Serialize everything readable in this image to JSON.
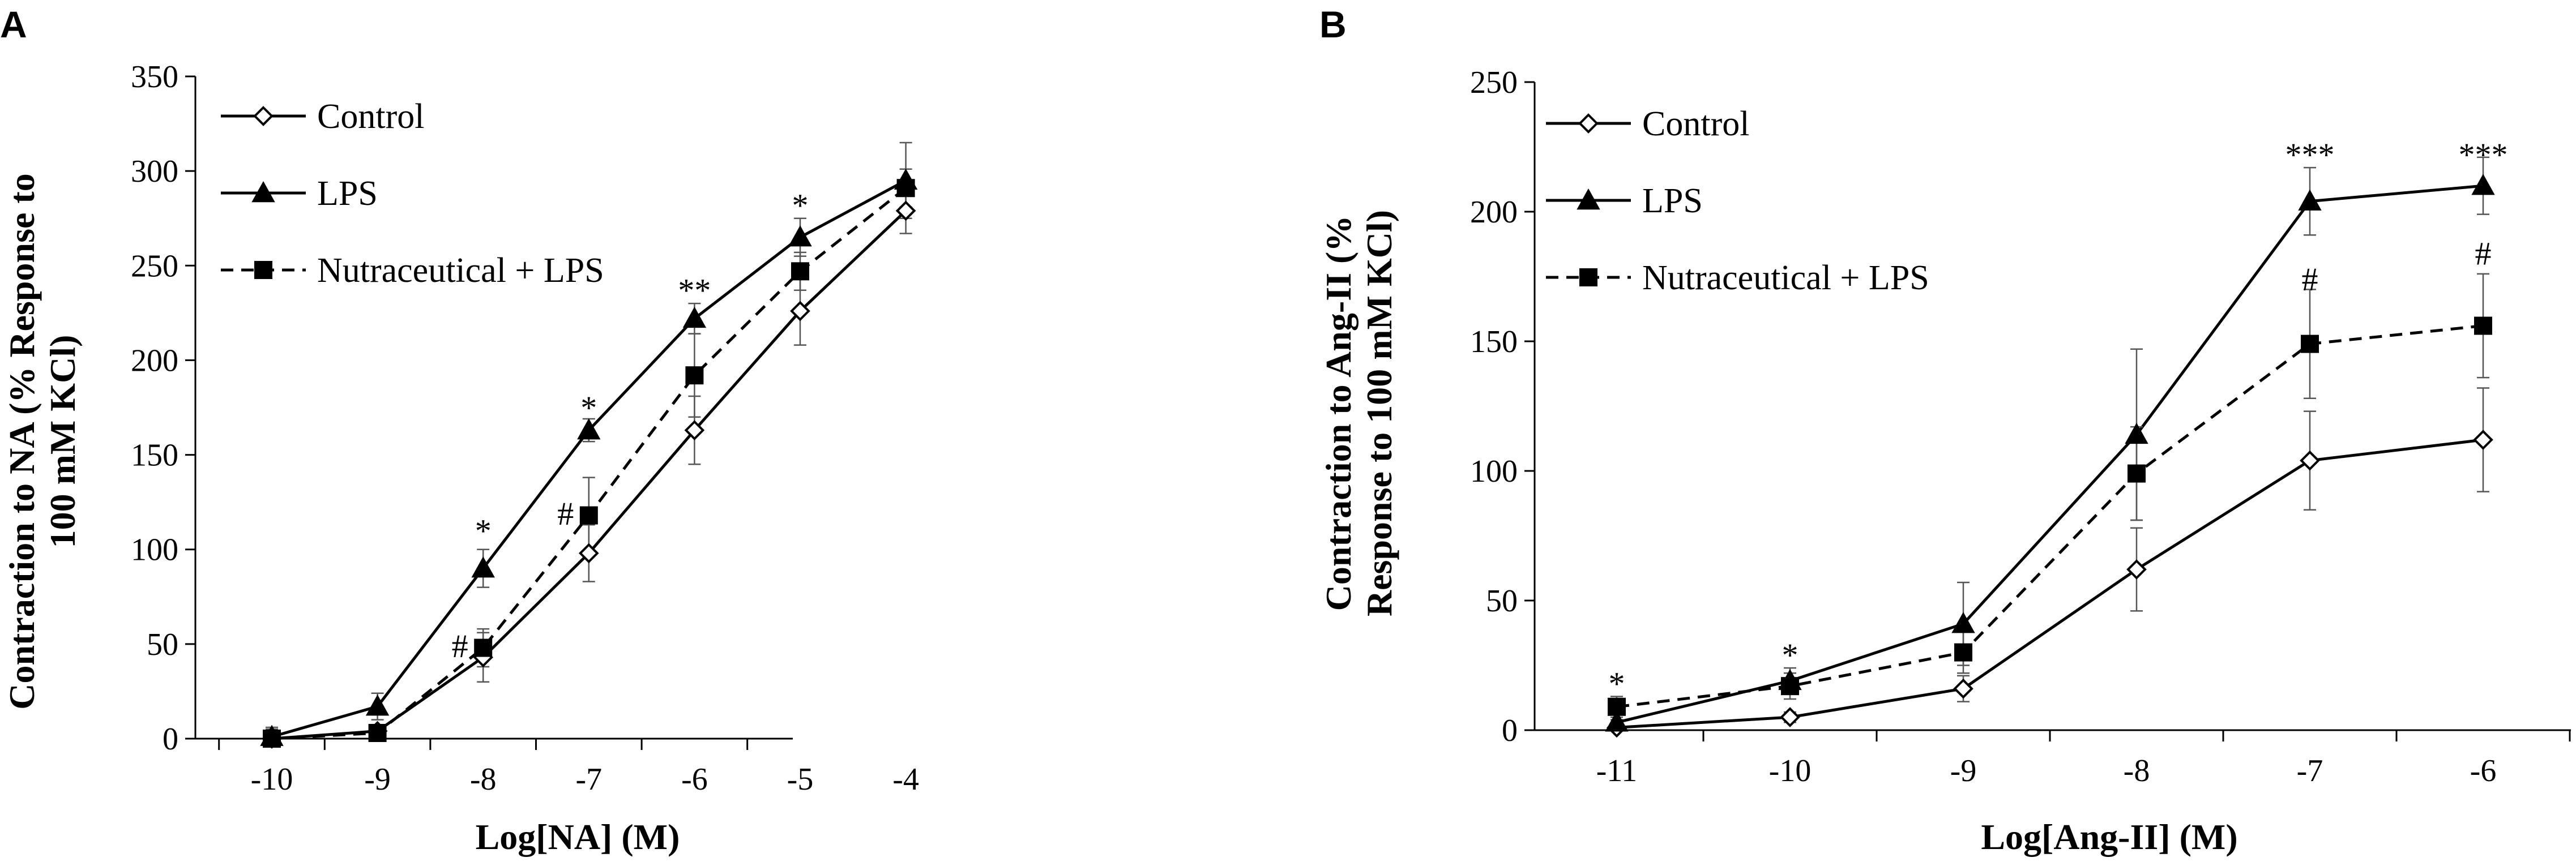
{
  "chart_data": [
    {
      "type": "line",
      "panel_label": "A",
      "title": "",
      "xlabel": "Log[NA] (M)",
      "ylabel_lines": [
        "Contraction to NA (% Response to",
        "100 mM KCl)"
      ],
      "ylim": [
        0,
        350
      ],
      "y_ticks": [
        "0",
        "50",
        "100",
        "150",
        "200",
        "250",
        "300",
        "350"
      ],
      "categories": [
        "-10",
        "-9",
        "-8",
        "-7",
        "-6",
        "-5",
        "-4"
      ],
      "legend_position": "top-left",
      "series": [
        {
          "name": "Control",
          "style": "solid",
          "marker": "diamond-open",
          "values": [
            0,
            4,
            43,
            98,
            163,
            226,
            279
          ],
          "errors": [
            5,
            3,
            13,
            15,
            18,
            18,
            12
          ]
        },
        {
          "name": "LPS",
          "style": "solid",
          "marker": "triangle-filled",
          "values": [
            1,
            17,
            90,
            163,
            222,
            265,
            295
          ],
          "errors": [
            5,
            7,
            10,
            6,
            8,
            10,
            20
          ]
        },
        {
          "name": "Nutraceutical + LPS",
          "style": "dashed",
          "marker": "square-filled",
          "values": [
            0,
            3,
            48,
            118,
            192,
            247,
            291
          ],
          "errors": [
            3,
            3,
            10,
            20,
            22,
            10,
            10
          ]
        }
      ],
      "annotations": [
        {
          "x": "-8",
          "y": 110,
          "text": "*"
        },
        {
          "x": "-7",
          "y": 175,
          "text": "*"
        },
        {
          "x": "-6",
          "y": 237,
          "text": "**"
        },
        {
          "x": "-5",
          "y": 282,
          "text": "*"
        },
        {
          "x": "-8.22",
          "y": 49,
          "text": "#"
        },
        {
          "x": "-7.22",
          "y": 119,
          "text": "#"
        }
      ]
    },
    {
      "type": "line",
      "panel_label": "B",
      "title": "",
      "xlabel": "Log[Ang-II] (M)",
      "ylabel_lines": [
        "Contraction to Ang-II (%",
        "Response to 100 mM KCl)"
      ],
      "ylim": [
        0,
        250
      ],
      "y_ticks": [
        "0",
        "50",
        "100",
        "150",
        "200",
        "250"
      ],
      "categories": [
        "-11",
        "-10",
        "-9",
        "-8",
        "-7",
        "-6"
      ],
      "legend_position": "top-left",
      "series": [
        {
          "name": "Control",
          "style": "solid",
          "marker": "diamond-open",
          "values": [
            1,
            5,
            16,
            62,
            104,
            112
          ],
          "errors": [
            3,
            2,
            5,
            16,
            19,
            20
          ]
        },
        {
          "name": "LPS",
          "style": "solid",
          "marker": "triangle-filled",
          "values": [
            3,
            19,
            41,
            114,
            204,
            210
          ],
          "errors": [
            3,
            5,
            16,
            33,
            13,
            11
          ]
        },
        {
          "name": "Nutraceutical + LPS",
          "style": "dashed",
          "marker": "square-filled",
          "values": [
            9,
            17,
            30,
            99,
            149,
            156
          ],
          "errors": [
            4,
            5,
            8,
            18,
            21,
            20
          ]
        }
      ],
      "annotations": [
        {
          "x": "-11",
          "y": 18,
          "text": "*"
        },
        {
          "x": "-10",
          "y": 29,
          "text": "*"
        },
        {
          "x": "-7",
          "y": 222,
          "text": "***"
        },
        {
          "x": "-6",
          "y": 222,
          "text": "***"
        },
        {
          "x": "-7",
          "y": 174,
          "text": "#"
        },
        {
          "x": "-6",
          "y": 184,
          "text": "#"
        }
      ]
    }
  ]
}
